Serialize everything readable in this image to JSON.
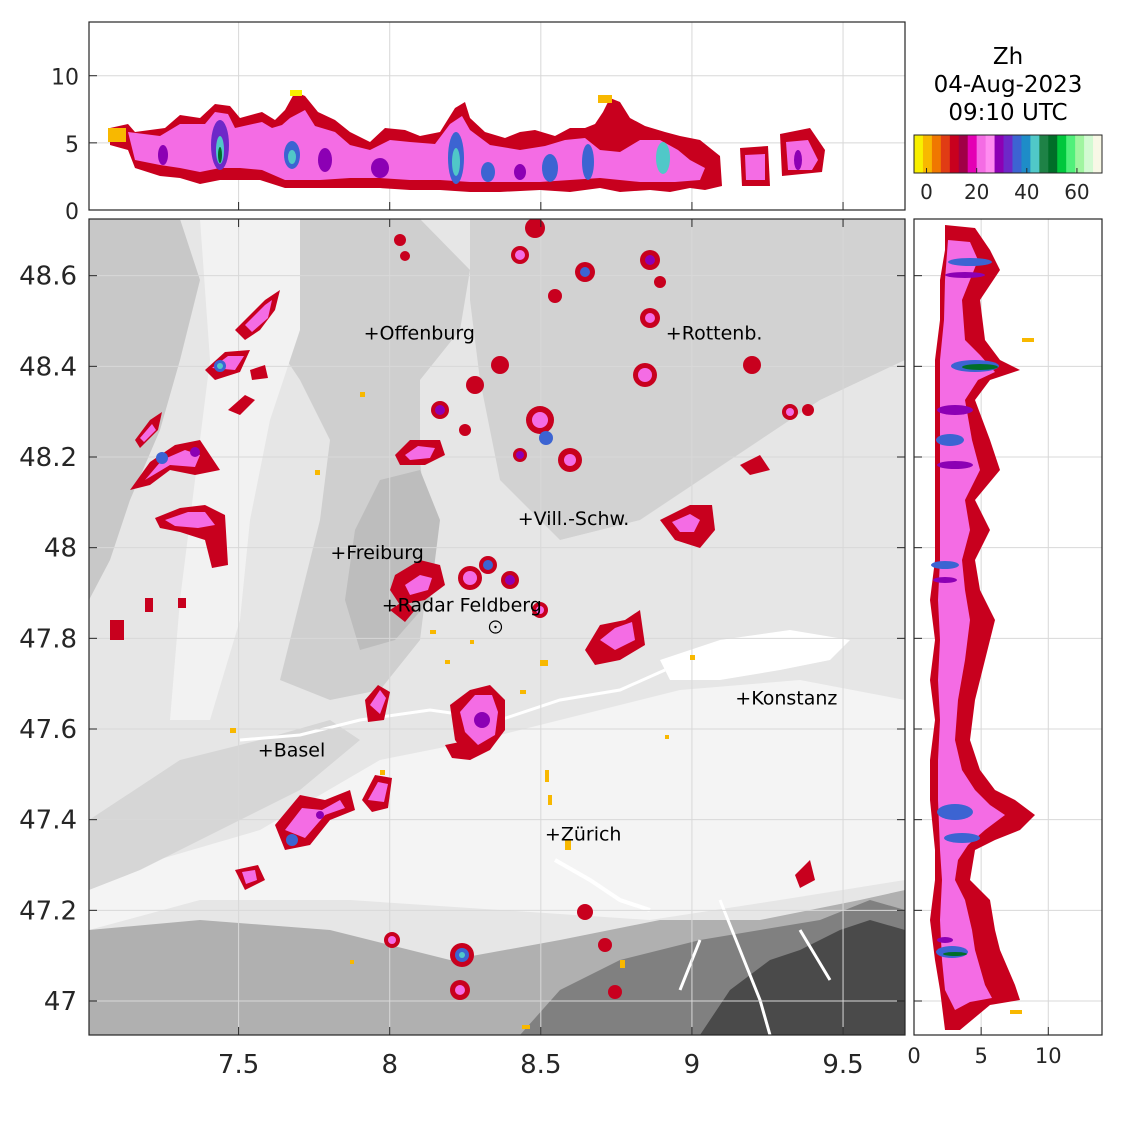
{
  "header": {
    "variable": "Zh",
    "date": "04-Aug-2023",
    "time": "09:10 UTC"
  },
  "colorbar": {
    "colors": [
      "#f8f000",
      "#f8b800",
      "#f07800",
      "#e03c14",
      "#c8001e",
      "#a00046",
      "#e400b4",
      "#f46ce4",
      "#ff8cf0",
      "#8c00b4",
      "#6e28c8",
      "#3c64d2",
      "#1e8cc8",
      "#50c8c8",
      "#1e8246",
      "#006e28",
      "#00c83c",
      "#50f07a",
      "#a0f5a0",
      "#d2fad2",
      "#f8f8e6"
    ],
    "tick_labels": [
      "0",
      "20",
      "40",
      "60"
    ],
    "ticks": [
      0,
      20,
      40,
      60
    ],
    "range": [
      -5,
      70
    ]
  },
  "map": {
    "x_ticks": [
      "7.5",
      "8",
      "8.5",
      "9",
      "9.5"
    ],
    "x_tick_values": [
      7.5,
      8,
      8.5,
      9,
      9.5
    ],
    "y_ticks": [
      "47",
      "47.2",
      "47.4",
      "47.6",
      "47.8",
      "48",
      "48.2",
      "48.4",
      "48.6"
    ],
    "y_tick_values": [
      47,
      47.2,
      47.4,
      47.6,
      47.8,
      48,
      48.2,
      48.4,
      48.6
    ],
    "lon_range": [
      7.005,
      9.705
    ],
    "lat_range": [
      46.925,
      48.725
    ],
    "radar": {
      "name": "Radar Feldberg",
      "lon": 8.35,
      "lat": 47.825
    },
    "cities": [
      {
        "name": "Offenburg",
        "lon": 7.94,
        "lat": 48.475
      },
      {
        "name": "Rottenb.",
        "lon": 8.94,
        "lat": 48.475
      },
      {
        "name": "Vill.-Schw.",
        "lon": 8.45,
        "lat": 48.065
      },
      {
        "name": "Freiburg",
        "lon": 7.83,
        "lat": 47.99
      },
      {
        "name": "Radar Feldberg",
        "lon": 8.0,
        "lat": 47.875
      },
      {
        "name": "Konstanz",
        "lon": 9.17,
        "lat": 47.67
      },
      {
        "name": "Basel",
        "lon": 7.59,
        "lat": 47.555
      },
      {
        "name": "Zürich",
        "lon": 8.54,
        "lat": 47.37
      }
    ]
  },
  "top_profile": {
    "y_ticks": [
      "0",
      "5",
      "10"
    ],
    "y_tick_values": [
      0,
      5,
      10
    ],
    "height_range_km": [
      0,
      14
    ]
  },
  "right_profile": {
    "x_ticks": [
      "0",
      "5",
      "10"
    ],
    "x_tick_values": [
      0,
      5,
      10
    ],
    "height_range_km": [
      0,
      14
    ]
  }
}
